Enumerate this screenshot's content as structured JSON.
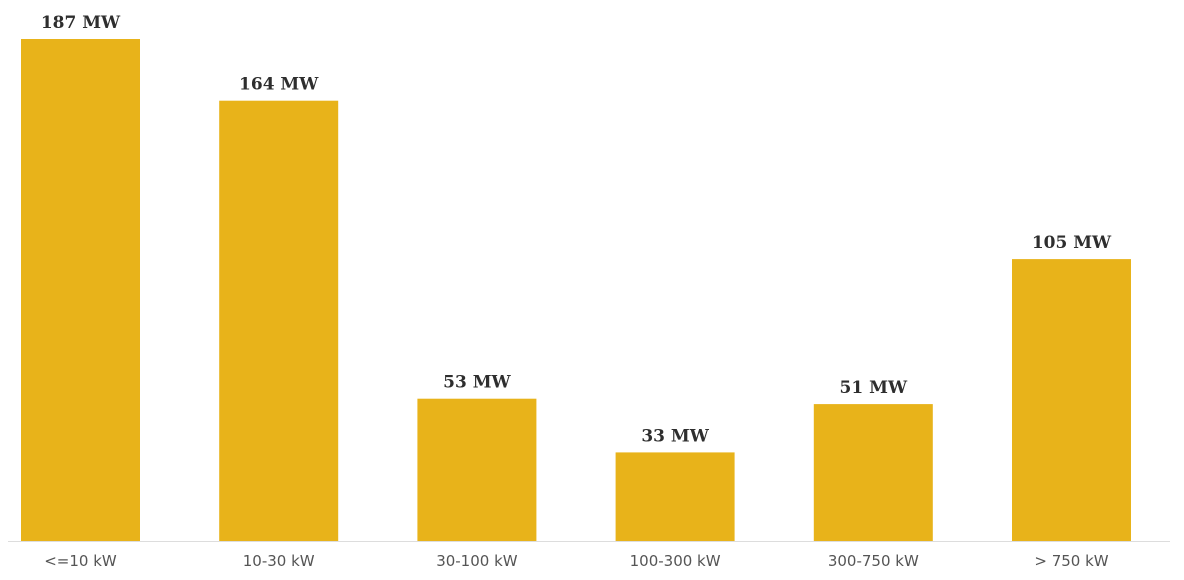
{
  "chart_data": {
    "type": "bar",
    "categories": [
      "<=10 kW",
      "10-30 kW",
      "30-100 kW",
      "100-300 kW",
      "300-750 kW",
      "> 750 kW"
    ],
    "values": [
      187,
      164,
      53,
      33,
      51,
      105
    ],
    "data_labels": [
      "187 MW",
      "164 MW",
      "53 MW",
      "33 MW",
      "51 MW",
      "105 MW"
    ],
    "unit": "MW",
    "title": "",
    "xlabel": "",
    "ylabel": "",
    "ylim": [
      0,
      187
    ],
    "grid": false,
    "legend": "none",
    "bar_color": "#E8B31A",
    "axis_color": "#DDDDDD"
  }
}
